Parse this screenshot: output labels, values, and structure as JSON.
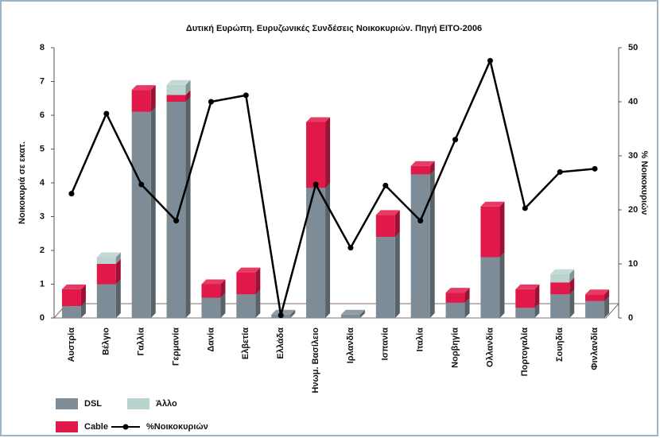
{
  "chart_data": {
    "type": "bar",
    "title": "Δυτική Ευρώπη. Ευρυζωνικές Συνδέσεις Νοικοκυριών. Πηγή ΕΙΤΟ-2006",
    "y_label": "Νοικοκυριά σε εκατ.",
    "y2_label": "% Νοικοκυριών",
    "categories": [
      "Αυστρία",
      "Βέλγιο",
      "Γαλλία",
      "Γερμανία",
      "Δανία",
      "Ελβετία",
      "Ελλάδα",
      "Ηνωμ. Βασίλειο",
      "Ιρλανδία",
      "Ισπανία",
      "Ιταλία",
      "Νορβηγία",
      "Ολλανδία",
      "Πορτογαλία",
      "Σουηδία",
      "Φινλανδία"
    ],
    "series": [
      {
        "name": "DSL",
        "color": "#7d8c96",
        "values": [
          0.35,
          1.0,
          6.1,
          6.4,
          0.6,
          0.7,
          0.1,
          3.85,
          0.1,
          2.4,
          4.25,
          0.45,
          1.8,
          0.3,
          0.7,
          0.5
        ]
      },
      {
        "name": "Cable",
        "color": "#e0194a",
        "values": [
          0.5,
          0.6,
          0.65,
          0.2,
          0.4,
          0.65,
          null,
          1.95,
          null,
          0.65,
          0.25,
          0.3,
          1.5,
          0.55,
          0.35,
          0.2
        ]
      },
      {
        "name": "Άλλο",
        "color": "#b9d4cf",
        "values": [
          null,
          0.2,
          null,
          0.3,
          null,
          null,
          null,
          null,
          null,
          null,
          null,
          null,
          null,
          null,
          0.25,
          null
        ]
      },
      {
        "name": "%Νοικοκυριών",
        "color": "#000000",
        "axis": "y2",
        "type": "line",
        "values": [
          23,
          37.8,
          24.7,
          18,
          40,
          41.2,
          0.5,
          24.7,
          13,
          24.5,
          18,
          33,
          47.6,
          20.3,
          27,
          27.6
        ]
      }
    ],
    "ylim": [
      0,
      8
    ],
    "yticks": [
      0,
      1,
      2,
      3,
      4,
      5,
      6,
      7,
      8
    ],
    "y2lim": [
      0,
      50
    ],
    "y2ticks": [
      0,
      10,
      20,
      30,
      40,
      50
    ]
  }
}
